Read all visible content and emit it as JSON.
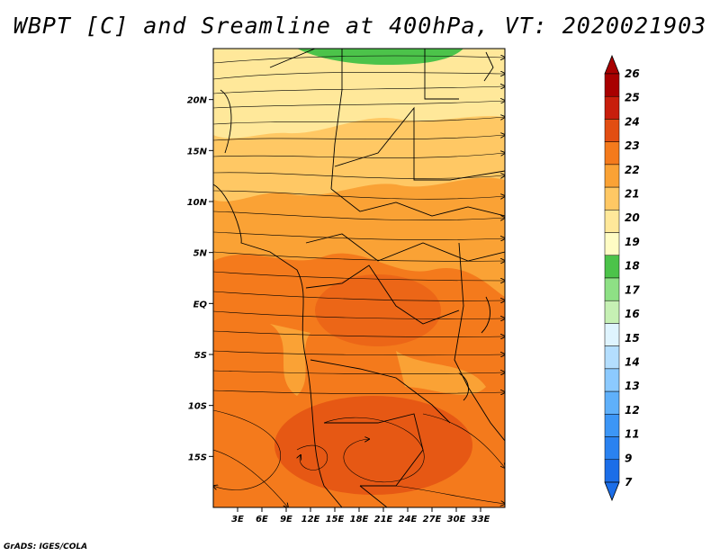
{
  "title": "WBPT [C] and Sreamline at 400hPa, VT: 2020021903",
  "credit": "GrADS: IGES/COLA",
  "map": {
    "lon_range": [
      0,
      36
    ],
    "lat_range": [
      -20,
      25
    ],
    "lat_ticks": [
      {
        "value": 20,
        "label": "20N"
      },
      {
        "value": 15,
        "label": "15N"
      },
      {
        "value": 10,
        "label": "10N"
      },
      {
        "value": 5,
        "label": "5N"
      },
      {
        "value": 0,
        "label": "EQ"
      },
      {
        "value": -5,
        "label": "5S"
      },
      {
        "value": -10,
        "label": "10S"
      },
      {
        "value": -15,
        "label": "15S"
      }
    ],
    "lon_ticks": [
      {
        "value": 3,
        "label": "3E"
      },
      {
        "value": 6,
        "label": "6E"
      },
      {
        "value": 9,
        "label": "9E"
      },
      {
        "value": 12,
        "label": "12E"
      },
      {
        "value": 15,
        "label": "15E"
      },
      {
        "value": 18,
        "label": "18E"
      },
      {
        "value": 21,
        "label": "21E"
      },
      {
        "value": 24,
        "label": "24E"
      },
      {
        "value": 27,
        "label": "27E"
      },
      {
        "value": 30,
        "label": "30E"
      },
      {
        "value": 33,
        "label": "33E"
      }
    ]
  },
  "colorbar": {
    "labels": [
      "7",
      "9",
      "11",
      "12",
      "13",
      "14",
      "15",
      "16",
      "17",
      "18",
      "19",
      "20",
      "21",
      "22",
      "23",
      "24",
      "25",
      "26"
    ],
    "colors": [
      "#1c6ee8",
      "#2a82f0",
      "#3c96f6",
      "#5fb0fa",
      "#8ccaff",
      "#b4defe",
      "#dff4fe",
      "#c6f0b4",
      "#8ee085",
      "#4cc34a",
      "#fffcc4",
      "#ffe89a",
      "#ffc864",
      "#faa235",
      "#f47a1c",
      "#e24e12",
      "#c81e0c",
      "#a80000"
    ]
  },
  "wbpt_field": {
    "unit": "C",
    "regions": [
      {
        "name": "north",
        "value": 20
      },
      {
        "name": "sahel",
        "value": 21
      },
      {
        "name": "equatorial",
        "value": 22
      },
      {
        "name": "southern-core",
        "value": 23
      },
      {
        "name": "northern-edge",
        "value": 17
      }
    ]
  }
}
